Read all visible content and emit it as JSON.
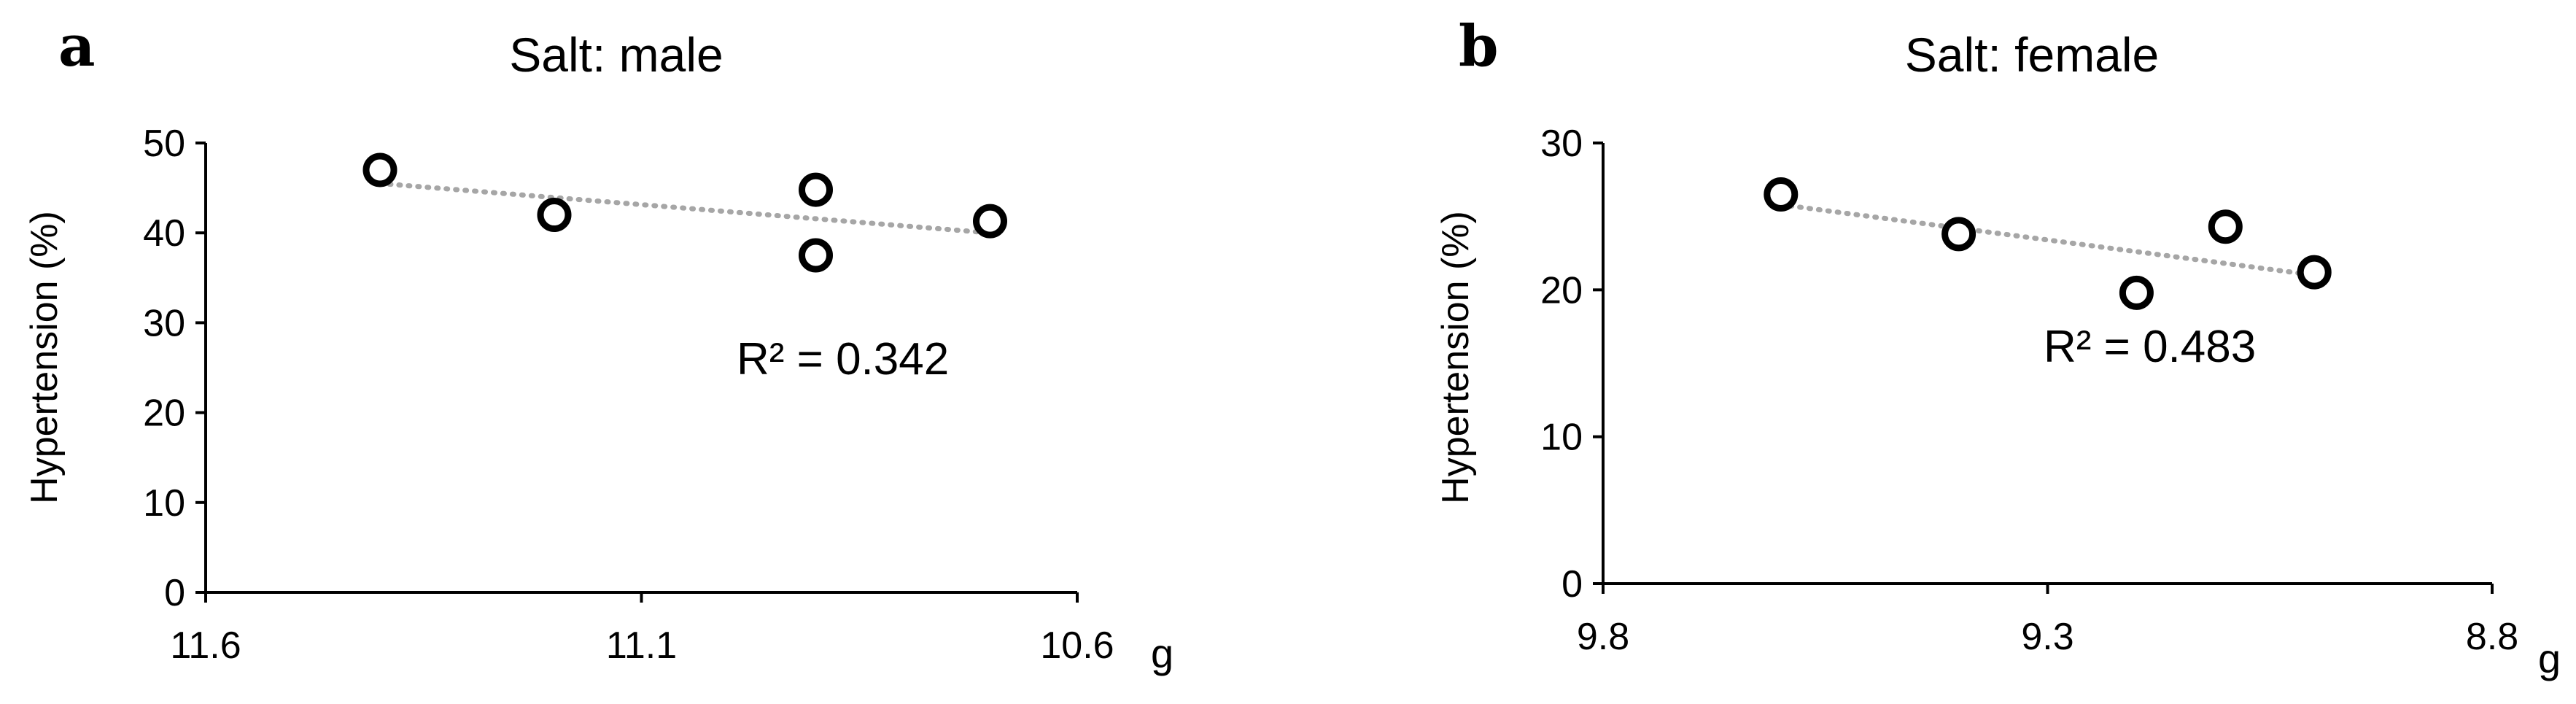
{
  "chart_data": [
    {
      "type": "scatter",
      "panel": "a",
      "title": "Salt: male",
      "ylabel": "Hypertension (%)",
      "xlabel": "",
      "x_unit": "g",
      "xlim": [
        11.6,
        10.6
      ],
      "x_ticks": [
        "11.6",
        "11.1",
        "10.6"
      ],
      "ylim": [
        0,
        50
      ],
      "y_ticks": [
        "0",
        "10",
        "20",
        "30",
        "40",
        "50"
      ],
      "x": [
        11.4,
        11.2,
        10.9,
        10.9,
        10.7
      ],
      "y": [
        47.0,
        42.0,
        44.8,
        37.5,
        41.3
      ],
      "trendline": {
        "x": [
          11.4,
          10.7
        ],
        "y": [
          45.5,
          40.0
        ],
        "style": "dotted"
      },
      "annotation": "R² = 0.342",
      "grid": false
    },
    {
      "type": "scatter",
      "panel": "b",
      "title": "Salt: female",
      "ylabel": "Hypertension (%)",
      "xlabel": "",
      "x_unit": "g",
      "xlim": [
        9.8,
        8.8
      ],
      "x_ticks": [
        "9.8",
        "9.3",
        "8.8"
      ],
      "ylim": [
        0,
        30
      ],
      "y_ticks": [
        "0",
        "10",
        "20",
        "30"
      ],
      "x": [
        9.6,
        9.4,
        9.2,
        9.1,
        9.0
      ],
      "y": [
        26.5,
        23.8,
        19.8,
        24.3,
        21.2
      ],
      "trendline": {
        "x": [
          9.6,
          9.0
        ],
        "y": [
          25.8,
          21.0
        ],
        "style": "dotted"
      },
      "annotation": "R² = 0.483",
      "grid": false
    }
  ]
}
